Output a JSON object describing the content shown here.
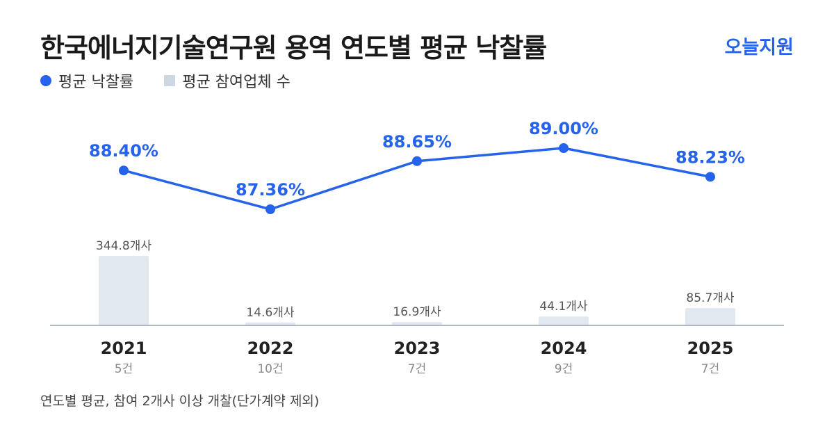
{
  "header": {
    "title": "한국에너지기술연구원 용역 연도별 평균 낙찰률",
    "brand": "오늘지원"
  },
  "legend": {
    "rate_label": "평균 낙찰률",
    "bidders_label": "평균 참여업체 수"
  },
  "footnote": "연도별 평균, 참여 2개사 이상 개찰(단가계약 제외)",
  "colors": {
    "line": "#2563eb",
    "bar": "#e2e8f0",
    "axis": "#94a3b8"
  },
  "chart_data": {
    "type": "bar",
    "categories": [
      "2021",
      "2022",
      "2023",
      "2024",
      "2025"
    ],
    "sublabels": [
      "5건",
      "10건",
      "7건",
      "9건",
      "7건"
    ],
    "series": [
      {
        "name": "평균 낙찰률",
        "type": "line",
        "values": [
          88.4,
          87.36,
          88.65,
          89.0,
          88.23
        ],
        "labels": [
          "88.40%",
          "87.36%",
          "88.65%",
          "89.00%",
          "88.23%"
        ]
      },
      {
        "name": "평균 참여업체 수",
        "type": "bar",
        "values": [
          344.8,
          14.6,
          16.9,
          44.1,
          85.7
        ],
        "labels": [
          "344.8개사",
          "14.6개사",
          "16.9개사",
          "44.1개사",
          "85.7개사"
        ]
      }
    ]
  }
}
